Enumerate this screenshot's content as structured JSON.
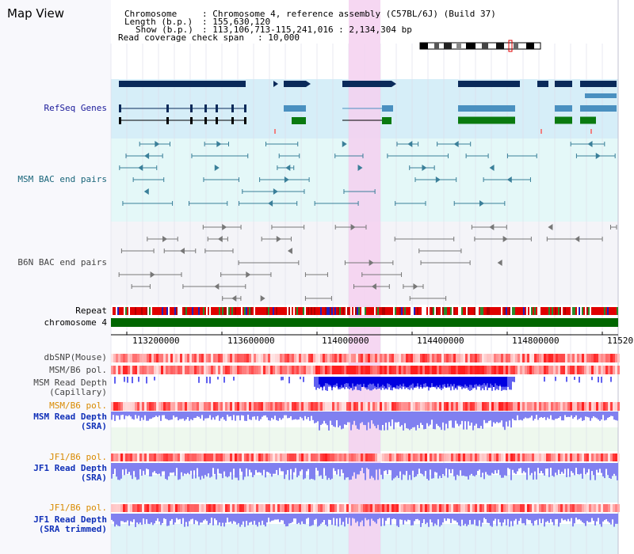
{
  "title": "Map View",
  "info": {
    "chromosome_key": "Chromosome",
    "chromosome_value": ": Chromosome 4, reference assembly (C57BL/6J) (Build 37)",
    "length_key": "Length (b.p.)",
    "length_value": ": 155,630,120",
    "show_key": "Show (b.p.)",
    "show_value": ": 113,106,713-115,241,016 : 2,134,304 bp",
    "span_key": "Read coverage check span",
    "span_value": ": 10,000"
  },
  "tracks": {
    "refseq": "RefSeq Genes",
    "msm_bac": "MSM BAC end pairs",
    "b6n_bac": "B6N BAC end pairs",
    "repeat": "Repeat",
    "chromosome": "chromosome 4",
    "dbsnp": "dbSNP(Mouse)",
    "msm_b6_pol": "MSM/B6 pol.",
    "msm_depth_cap": "MSM Read Depth\n(Capillary)",
    "msm_b6_pol2": "MSM/B6 pol.",
    "msm_depth_sra": "MSM Read Depth\n(SRA)",
    "jf1_b6_pol": "JF1/B6 pol.",
    "jf1_depth_sra": "JF1 Read Depth\n(SRA)",
    "jf1_b6_pol2": "JF1/B6 pol.",
    "jf1_depth_trim": "JF1 Read Depth\n(SRA trimmed)"
  },
  "axis": {
    "ticks": [
      "113200000",
      "113600000",
      "114000000",
      "114400000",
      "114800000",
      "11520"
    ]
  },
  "colors": {
    "gene_navy": "#0a2a5a",
    "gene_light": "#4a90c0",
    "gene_green": "#0a7a10",
    "bac_teal": "#3a7f99",
    "highlight": "#f5d0f0",
    "depth_blue": "#0000e0",
    "depth_light": "#8080f0",
    "chromosome": "#006600"
  }
}
